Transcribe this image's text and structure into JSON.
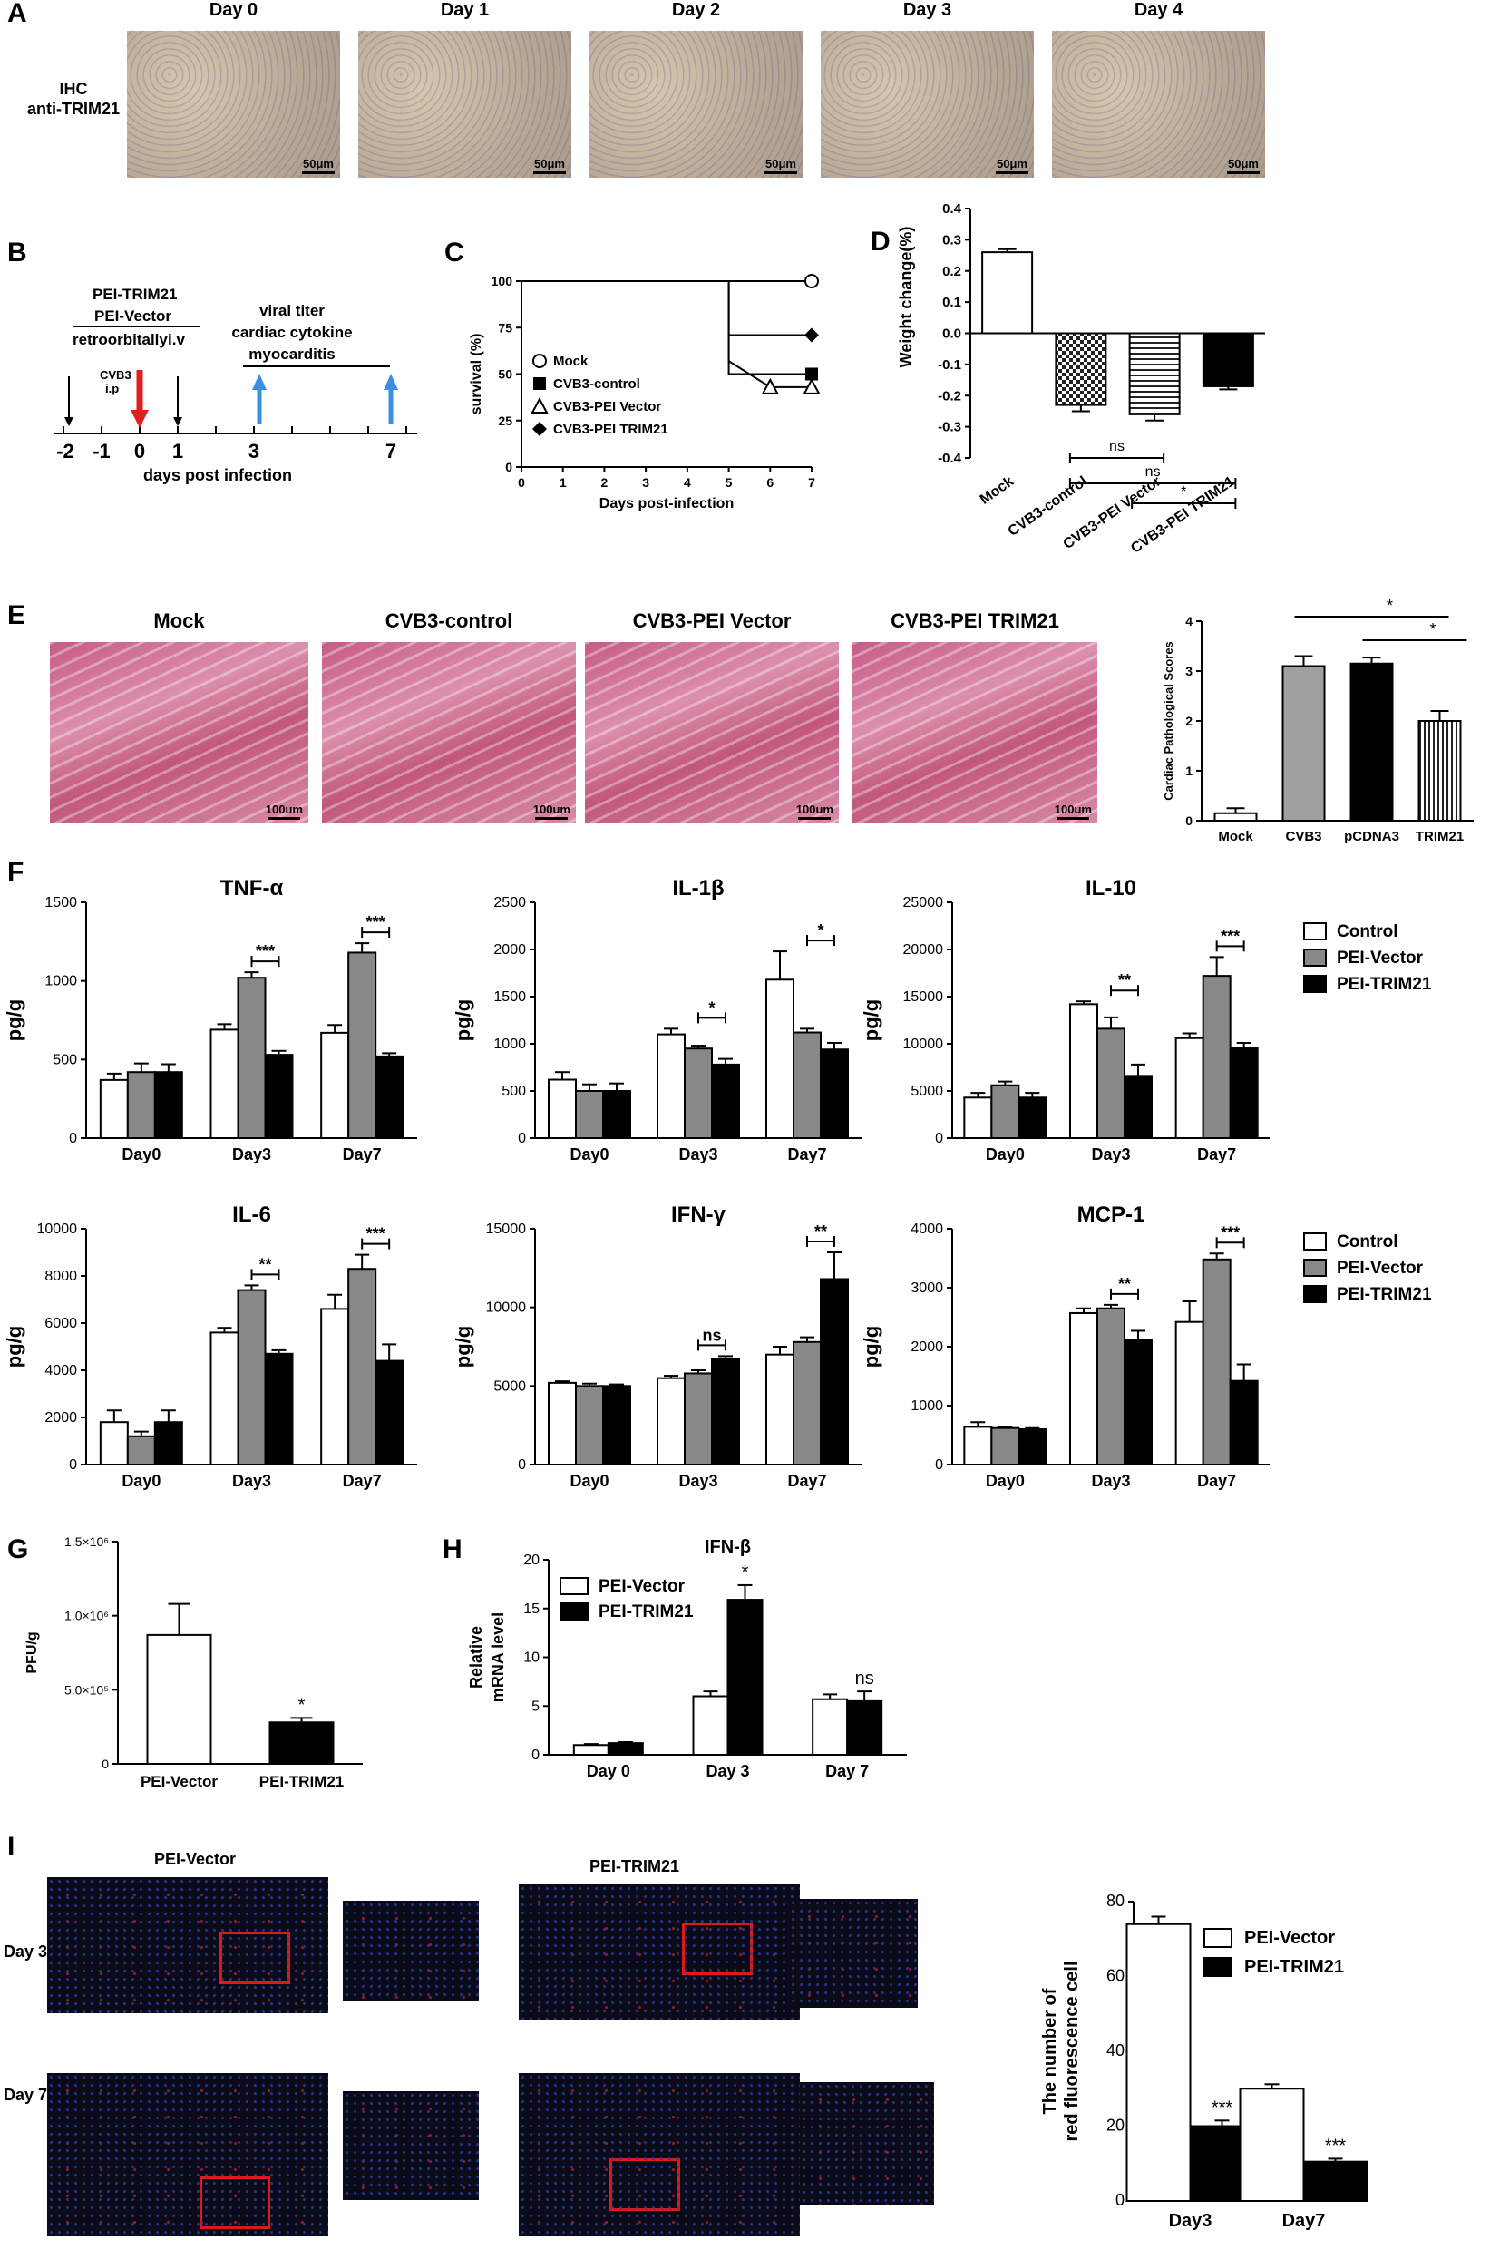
{
  "panelA": {
    "letter": "A",
    "label_line1": "IHC",
    "label_line2": "anti-TRIM21",
    "days": [
      "Day 0",
      "Day 1",
      "Day 2",
      "Day 3",
      "Day 4"
    ],
    "scale": "50μm"
  },
  "panelB": {
    "letter": "B",
    "line1": "PEI-TRIM21",
    "line2": "PEI-Vector",
    "line3": "retroorbitally",
    "iv": "i.v",
    "cvb3": "CVB3",
    "ip": "i.p",
    "right1": "viral titer",
    "right2": "cardiac cytokine",
    "right3": "myocarditis",
    "ticks": [
      "-2",
      "-1",
      "0",
      "1",
      "3",
      "7"
    ],
    "xlabel": "days post infection"
  },
  "panelC": {
    "letter": "C"
  },
  "panelD": {
    "letter": "D"
  },
  "panelE": {
    "letter": "E",
    "titles": [
      "Mock",
      "CVB3-control",
      "CVB3-PEI Vector",
      "CVB3-PEI TRIM21"
    ],
    "scale": "100um"
  },
  "panelF": {
    "letter": "F"
  },
  "panelG": {
    "letter": "G"
  },
  "panelH": {
    "letter": "H"
  },
  "panelI": {
    "letter": "I",
    "col1": "PEI-Vector",
    "col2": "PEI-TRIM21",
    "row1": "Day 3",
    "row2": "Day 7"
  },
  "chart_data": [
    {
      "id": "C",
      "type": "line",
      "xlabel": "Days post-infection",
      "ylabel": "survival (%)",
      "xlim": [
        0,
        7
      ],
      "ylim": [
        0,
        100
      ],
      "xticks": [
        0,
        1,
        2,
        3,
        4,
        5,
        6,
        7
      ],
      "yticks": [
        0,
        25,
        50,
        75,
        100
      ],
      "series": [
        {
          "name": "Mock",
          "marker": "circle-open",
          "x": [
            0,
            7
          ],
          "y": [
            100,
            100
          ]
        },
        {
          "name": "CVB3-control",
          "marker": "square",
          "x": [
            0,
            5,
            5,
            7
          ],
          "y": [
            100,
            100,
            50,
            50
          ]
        },
        {
          "name": "CVB3-PEI Vector",
          "marker": "triangle-open",
          "x": [
            0,
            5,
            5,
            6,
            7
          ],
          "y": [
            100,
            100,
            57,
            43,
            43
          ]
        },
        {
          "name": "CVB3-PEI TRIM21",
          "marker": "diamond",
          "x": [
            0,
            5,
            5,
            7
          ],
          "y": [
            100,
            100,
            71,
            71
          ]
        }
      ]
    },
    {
      "id": "D",
      "type": "bar",
      "ylabel": "Weight change(%)",
      "ylim": [
        -0.4,
        0.4
      ],
      "yticks": [
        "0.4",
        "0.3",
        "0.2",
        "0.1",
        "0.0",
        "-0.1",
        "-0.2",
        "-0.3",
        "-0.4"
      ],
      "categories": [
        "Mock",
        "CVB3-control",
        "CVB3-PEI Vector",
        "CVB3-PEI TRIM21"
      ],
      "values": [
        0.26,
        -0.23,
        -0.26,
        -0.17
      ],
      "errors": [
        0.01,
        0.02,
        0.02,
        0.01
      ],
      "fills": [
        "white",
        "check",
        "hstripe",
        "black"
      ],
      "annotations": [
        {
          "from": 1,
          "to": 2,
          "label": "ns"
        },
        {
          "from": 1,
          "to": 3,
          "label": "ns"
        },
        {
          "from": 2,
          "to": 3,
          "label": "*"
        }
      ]
    },
    {
      "id": "E",
      "type": "bar",
      "ylabel": "Cardiac Pathological Scores",
      "ylim": [
        0,
        4
      ],
      "yticks": [
        0,
        1,
        2,
        3,
        4
      ],
      "categories": [
        "Mock",
        "CVB3",
        "pCDNA3",
        "TRIM21"
      ],
      "values": [
        0.15,
        3.1,
        3.15,
        2.0
      ],
      "errors": [
        0.1,
        0.2,
        0.12,
        0.2
      ],
      "fills": [
        "white",
        "#a0a0a0",
        "black",
        "vstripe"
      ],
      "annotations": [
        {
          "from": 1,
          "to": 3,
          "label": "*"
        },
        {
          "from": 2,
          "to": 3,
          "label": "*"
        }
      ]
    },
    {
      "id": "TNF",
      "type": "bar",
      "title": "TNF-α",
      "ylabel": "pg/g",
      "categories": [
        "Day0",
        "Day3",
        "Day7"
      ],
      "ylim": [
        0,
        1500
      ],
      "yticks": [
        0,
        500,
        1000,
        1500
      ],
      "series": [
        {
          "name": "Control",
          "values": [
            370,
            690,
            670
          ],
          "errors": [
            40,
            35,
            50
          ]
        },
        {
          "name": "PEI-Vector",
          "values": [
            420,
            1020,
            1180
          ],
          "errors": [
            55,
            35,
            60
          ]
        },
        {
          "name": "PEI-TRIM21",
          "values": [
            420,
            530,
            520
          ],
          "errors": [
            50,
            25,
            20
          ]
        }
      ],
      "annotations": [
        {
          "group": 1,
          "label": "***"
        },
        {
          "group": 2,
          "label": "***"
        }
      ]
    },
    {
      "id": "IL1",
      "type": "bar",
      "title": "IL-1β",
      "ylabel": "pg/g",
      "categories": [
        "Day0",
        "Day3",
        "Day7"
      ],
      "ylim": [
        0,
        2500
      ],
      "yticks": [
        0,
        500,
        1000,
        1500,
        2000,
        2500
      ],
      "series": [
        {
          "name": "Control",
          "values": [
            620,
            1100,
            1680
          ],
          "errors": [
            80,
            60,
            300
          ]
        },
        {
          "name": "PEI-Vector",
          "values": [
            500,
            950,
            1120
          ],
          "errors": [
            70,
            30,
            40
          ]
        },
        {
          "name": "PEI-TRIM21",
          "values": [
            500,
            780,
            940
          ],
          "errors": [
            80,
            60,
            70
          ]
        }
      ],
      "annotations": [
        {
          "group": 1,
          "label": "*"
        },
        {
          "group": 2,
          "label": "*"
        }
      ]
    },
    {
      "id": "IL10",
      "type": "bar",
      "title": "IL-10",
      "ylabel": "pg/g",
      "categories": [
        "Day0",
        "Day3",
        "Day7"
      ],
      "ylim": [
        0,
        25000
      ],
      "yticks": [
        0,
        5000,
        10000,
        15000,
        20000,
        25000
      ],
      "series": [
        {
          "name": "Control",
          "values": [
            4300,
            14200,
            10600
          ],
          "errors": [
            500,
            300,
            500
          ]
        },
        {
          "name": "PEI-Vector",
          "values": [
            5600,
            11600,
            17200
          ],
          "errors": [
            400,
            1200,
            2000
          ]
        },
        {
          "name": "PEI-TRIM21",
          "values": [
            4300,
            6600,
            9600
          ],
          "errors": [
            500,
            1200,
            500
          ]
        }
      ],
      "annotations": [
        {
          "group": 1,
          "label": "**"
        },
        {
          "group": 2,
          "label": "***"
        }
      ]
    },
    {
      "id": "IL6",
      "type": "bar",
      "title": "IL-6",
      "ylabel": "pg/g",
      "categories": [
        "Day0",
        "Day3",
        "Day7"
      ],
      "ylim": [
        0,
        10000
      ],
      "yticks": [
        0,
        2000,
        4000,
        6000,
        8000,
        10000
      ],
      "series": [
        {
          "name": "Control",
          "values": [
            1800,
            5600,
            6600
          ],
          "errors": [
            500,
            200,
            600
          ]
        },
        {
          "name": "PEI-Vector",
          "values": [
            1200,
            7400,
            8300
          ],
          "errors": [
            200,
            200,
            600
          ]
        },
        {
          "name": "PEI-TRIM21",
          "values": [
            1800,
            4700,
            4400
          ],
          "errors": [
            500,
            150,
            700
          ]
        }
      ],
      "annotations": [
        {
          "group": 1,
          "label": "**"
        },
        {
          "group": 2,
          "label": "***"
        }
      ]
    },
    {
      "id": "IFNg",
      "type": "bar",
      "title": "IFN-γ",
      "ylabel": "pg/g",
      "categories": [
        "Day0",
        "Day3",
        "Day7"
      ],
      "ylim": [
        0,
        15000
      ],
      "yticks": [
        0,
        5000,
        10000,
        15000
      ],
      "series": [
        {
          "name": "Control",
          "values": [
            5200,
            5500,
            7000
          ],
          "errors": [
            100,
            150,
            500
          ]
        },
        {
          "name": "PEI-Vector",
          "values": [
            5000,
            5800,
            7800
          ],
          "errors": [
            150,
            200,
            300
          ]
        },
        {
          "name": "PEI-TRIM21",
          "values": [
            5000,
            6700,
            11800
          ],
          "errors": [
            100,
            200,
            1700
          ]
        }
      ],
      "annotations": [
        {
          "group": 1,
          "label": "ns"
        },
        {
          "group": 2,
          "label": "**"
        }
      ]
    },
    {
      "id": "MCP1",
      "type": "bar",
      "title": "MCP-1",
      "ylabel": "pg/g",
      "categories": [
        "Day0",
        "Day3",
        "Day7"
      ],
      "ylim": [
        0,
        4000
      ],
      "yticks": [
        0,
        1000,
        2000,
        3000,
        4000
      ],
      "series": [
        {
          "name": "Control",
          "values": [
            640,
            2570,
            2420
          ],
          "errors": [
            80,
            80,
            350
          ]
        },
        {
          "name": "PEI-Vector",
          "values": [
            620,
            2650,
            3480
          ],
          "errors": [
            20,
            60,
            100
          ]
        },
        {
          "name": "PEI-TRIM21",
          "values": [
            600,
            2120,
            1420
          ],
          "errors": [
            20,
            150,
            280
          ]
        }
      ],
      "annotations": [
        {
          "group": 1,
          "label": "**"
        },
        {
          "group": 2,
          "label": "***"
        }
      ]
    },
    {
      "id": "G",
      "type": "bar",
      "ylabel": "PFU/g",
      "categories": [
        "PEI-Vector",
        "PEI-TRIM21"
      ],
      "values": [
        870000,
        280000
      ],
      "errors": [
        210000,
        30000
      ],
      "ylim": [
        0,
        1500000
      ],
      "yticks": [
        0,
        500000,
        1000000,
        1500000
      ],
      "ytick_labels": [
        "0",
        "5.0×10⁵",
        "1.0×10⁶",
        "1.5×10⁶"
      ],
      "fills": [
        "white",
        "black"
      ],
      "annotations": [
        {
          "bar": 1,
          "label": "*"
        }
      ]
    },
    {
      "id": "H",
      "type": "bar",
      "title": "IFN-β",
      "ylabel_line1": "Relative",
      "ylabel_line2": "mRNA level",
      "categories": [
        "Day 0",
        "Day 3",
        "Day 7"
      ],
      "ylim": [
        0,
        20
      ],
      "yticks": [
        0,
        5,
        10,
        15,
        20
      ],
      "series": [
        {
          "name": "PEI-Vector",
          "values": [
            1.0,
            6.0,
            5.7
          ],
          "errors": [
            0.1,
            0.5,
            0.5
          ]
        },
        {
          "name": "PEI-TRIM21",
          "values": [
            1.2,
            15.9,
            5.5
          ],
          "errors": [
            0.1,
            1.5,
            1.0
          ]
        }
      ],
      "annotations": [
        {
          "group": 1,
          "series": 1,
          "label": "*"
        },
        {
          "group": 2,
          "series": 1,
          "label": "ns"
        }
      ]
    },
    {
      "id": "I",
      "type": "bar",
      "ylabel_line1": "The number of",
      "ylabel_line2": "red fluorescence cell",
      "categories": [
        "Day3",
        "Day7"
      ],
      "ylim": [
        0,
        80
      ],
      "yticks": [
        0,
        20,
        40,
        60,
        80
      ],
      "series": [
        {
          "name": "PEI-Vector",
          "values": [
            74,
            30
          ],
          "errors": [
            2,
            1.2
          ]
        },
        {
          "name": "PEI-TRIM21",
          "values": [
            20,
            10.5
          ],
          "errors": [
            1.5,
            0.8
          ]
        }
      ],
      "annotations": [
        {
          "group": 0,
          "series": 1,
          "label": "***"
        },
        {
          "group": 1,
          "series": 1,
          "label": "***"
        }
      ]
    }
  ],
  "legend_F": [
    "Control",
    "PEI-Vector",
    "PEI-TRIM21"
  ]
}
